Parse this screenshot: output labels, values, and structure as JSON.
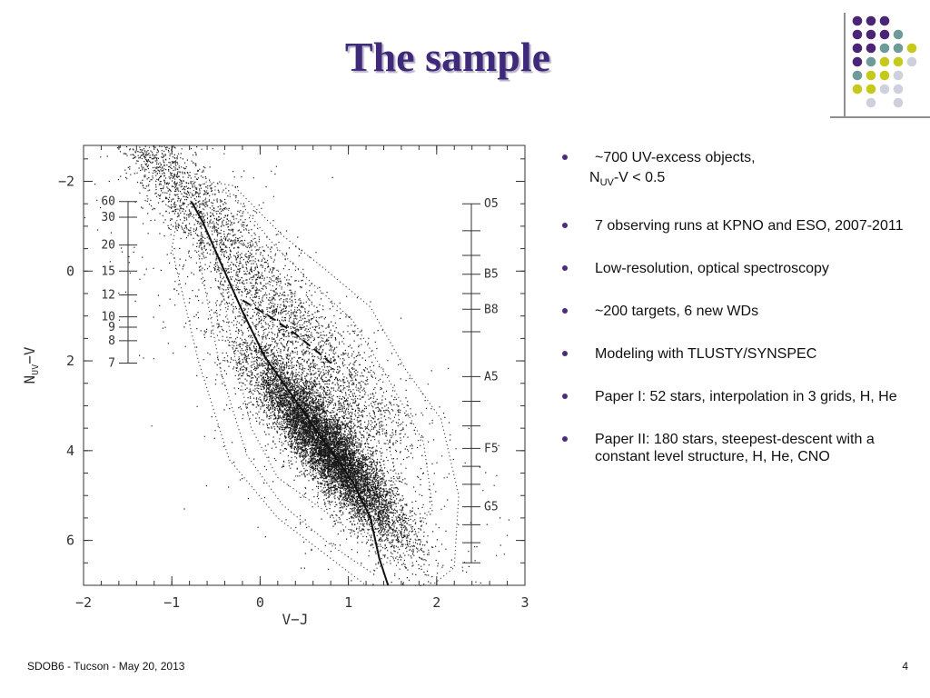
{
  "slide": {
    "title": "The sample",
    "footer_left": "SDOB6 - Tucson - May 20, 2013",
    "page_number": "4"
  },
  "theme": {
    "title_color": "#3f2a7a",
    "bullet_color": "#4b2c7f",
    "dot_colors": [
      "#4b2377",
      "#6e9a9a",
      "#c5c91c",
      "#cfd0de"
    ]
  },
  "bullets": [
    {
      "text": "~700 UV-excess objects,",
      "sub_prefix": "N",
      "sub_subscript": "UV",
      "sub_suffix": "-V < 0.5"
    },
    {
      "text": "7 observing runs at KPNO and ESO, 2007-2011"
    },
    {
      "text": "Low-resolution, optical spectroscopy"
    },
    {
      "text": "~200 targets, 6 new WDs"
    },
    {
      "text": "Modeling with TLUSTY/SYNSPEC"
    },
    {
      "text": "Paper I: 52 stars, interpolation in 3 grids, H, He"
    },
    {
      "text": "Paper II: 180 stars, steepest-descent with a constant level structure, H, He, CNO"
    }
  ],
  "chart_data": {
    "type": "scatter",
    "title": "",
    "xlabel": "V−J",
    "ylabel_main": "N",
    "ylabel_sub": "UV",
    "ylabel_suffix": "−V",
    "xlim": [
      -2,
      3
    ],
    "ylim": [
      7,
      -2.8
    ],
    "y_inverted": true,
    "x_ticks": [
      "−2",
      "−1",
      "0",
      "1",
      "2",
      "3"
    ],
    "x_tick_values": [
      -2,
      -1,
      0,
      1,
      2,
      3
    ],
    "y_ticks": [
      "−2",
      "0",
      "2",
      "4",
      "6"
    ],
    "y_tick_values": [
      -2,
      0,
      2,
      4,
      6
    ],
    "temperature_scale": {
      "labels": [
        "60",
        "30",
        "20",
        "15",
        "12",
        "10",
        "9",
        "8",
        "7"
      ],
      "y": [
        -1.55,
        -1.2,
        -0.58,
        0,
        0.53,
        1.02,
        1.25,
        1.55,
        2.05
      ]
    },
    "spectral_scale": {
      "labels": [
        "O5",
        "B5",
        "B8",
        "A5",
        "F5",
        "G5"
      ],
      "y": [
        -1.5,
        0.07,
        0.85,
        2.35,
        3.95,
        5.25
      ]
    },
    "solid_track": {
      "x": [
        -0.78,
        -0.65,
        -0.45,
        -0.2,
        0.05,
        0.3,
        0.55,
        0.8,
        1.05,
        1.25,
        1.35,
        1.45
      ],
      "y": [
        -1.55,
        -1.1,
        -0.2,
        0.9,
        1.9,
        2.6,
        3.3,
        4.0,
        4.7,
        5.5,
        6.4,
        7.0
      ]
    },
    "dashed_track": {
      "x": [
        -0.2,
        0.1,
        0.4,
        0.65,
        0.8
      ],
      "y": [
        0.65,
        1.0,
        1.4,
        1.8,
        2.05
      ]
    },
    "scatter_points": "approximately 15000 stellar points concentrated along the main sequence; rendered procedurally"
  }
}
